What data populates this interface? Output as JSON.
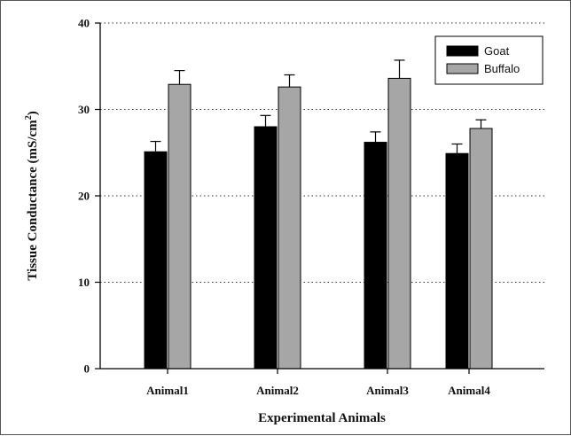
{
  "chart_data": {
    "type": "bar",
    "title": "",
    "xlabel": "Experimental Animals",
    "ylabel_main": "Tissue Conductance (mS/cm",
    "ylabel_sup": "2",
    "ylabel_end": ")",
    "categories": [
      "Animal1",
      "Animal2",
      "Animal3",
      "Animal4"
    ],
    "ylim": [
      0,
      40
    ],
    "yticks": [
      "0",
      "10",
      "20",
      "30",
      "40"
    ],
    "grid": "horizontal dotted",
    "legend_position": "top-right",
    "series": [
      {
        "name": "Goat",
        "color": "#000000",
        "values": [
          25.1,
          28.0,
          26.2,
          24.9
        ],
        "errors": [
          1.2,
          1.3,
          1.2,
          1.1
        ]
      },
      {
        "name": "Buffalo",
        "color": "#a6a6a6",
        "values": [
          32.9,
          32.6,
          33.6,
          27.8
        ],
        "errors": [
          1.6,
          1.4,
          2.1,
          1.0
        ]
      }
    ]
  }
}
